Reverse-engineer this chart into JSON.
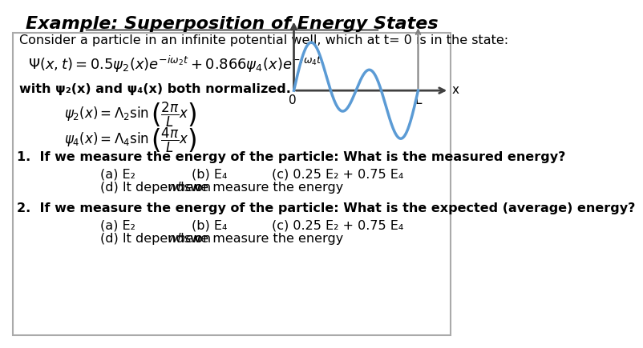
{
  "title": "Example: Superposition of Energy States",
  "bg_color": "#ffffff",
  "box_color": "#aaaaaa",
  "title_fontsize": 16,
  "body_fontsize": 12,
  "wave_color": "#5b9bd5",
  "arrow_color": "#808080",
  "axis_color": "#404040",
  "text_color": "#000000",
  "consider_text": "Consider a particle in an infinite potential well, which at t= 0 is in the state:",
  "psi_main": "$\\Psi(x,t) = 0.5\\psi_2(x)e^{-i\\omega_2 t} + 0.866\\psi_4(x)e^{-i\\omega_4 t}$",
  "with_text": "with ψ₂(x) and ψ₄(x) both normalized.",
  "psi2_eq": "$\\psi_2(x) = \\Lambda_2 \\sin\\left(\\dfrac{2\\pi}{L}x\\right)$",
  "psi4_eq": "$\\psi_4(x) = \\Lambda_4 \\sin\\left(\\dfrac{4\\pi}{L}x\\right)$",
  "q1_text": "1.  If we measure the energy of the particle: What is the measured energy?",
  "q2_text": "2.  If we measure the energy of the particle: What is the expected (average) energy?",
  "ans_a": "(a) E₂",
  "ans_b": "(b) E₄",
  "ans_c": "(c) 0.25 E₂ + 0.75 E₄",
  "ans_d": "(d) It depends on ",
  "ans_d_italic": "when",
  "ans_d_rest": " we measure the energy"
}
